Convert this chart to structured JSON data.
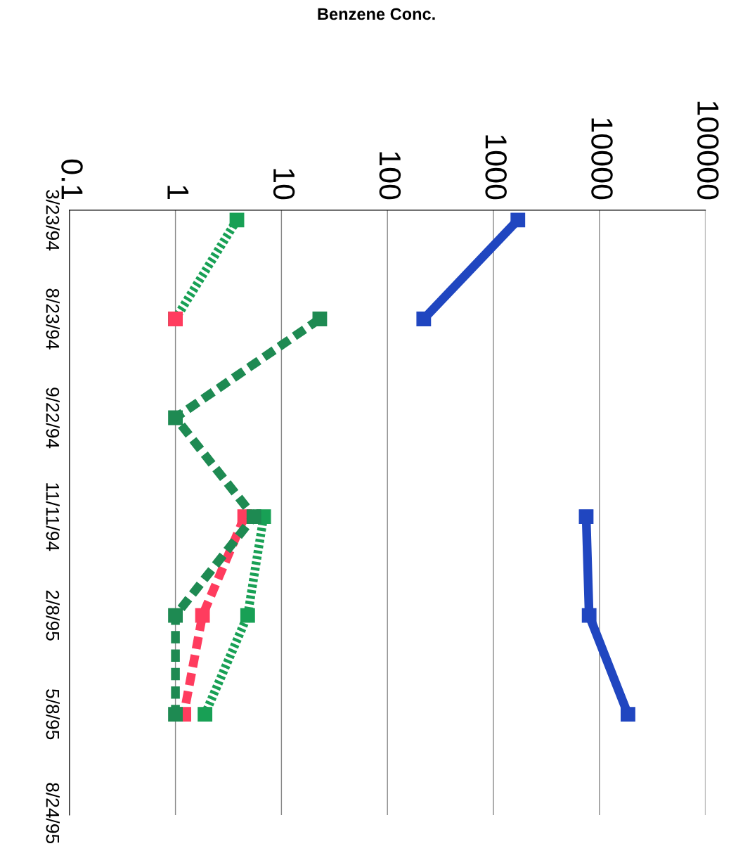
{
  "chart_data": {
    "type": "line",
    "orientation": "horizontal",
    "title": "Benzene Conc.",
    "categories": [
      "3/23/94",
      "8/23/94",
      "9/22/94",
      "11/11/94",
      "2/8/95",
      "5/8/95",
      "8/24/95"
    ],
    "log": "x",
    "xlim": [
      0.1,
      100000
    ],
    "xticks": [
      0.1,
      1,
      10,
      100,
      1000,
      10000,
      100000
    ],
    "grid": "x",
    "marker": "square",
    "legend": false,
    "series": [
      {
        "color": "#2046c0",
        "line_style": "solid",
        "values": [
          1700,
          220,
          null,
          7500,
          8000,
          18600,
          null
        ]
      },
      {
        "color": "#18a055",
        "line_style": "dotted",
        "values": [
          3.8,
          1,
          null,
          6.8,
          4.8,
          1.9,
          null
        ]
      },
      {
        "color": "#ff3c5e",
        "line_style": "dashed",
        "values": [
          null,
          1,
          null,
          4.5,
          1.8,
          1.2,
          null
        ]
      },
      {
        "color": "#1e8a52",
        "line_style": "dashed",
        "values": [
          null,
          23,
          1,
          5.5,
          1,
          1,
          null
        ]
      }
    ]
  }
}
